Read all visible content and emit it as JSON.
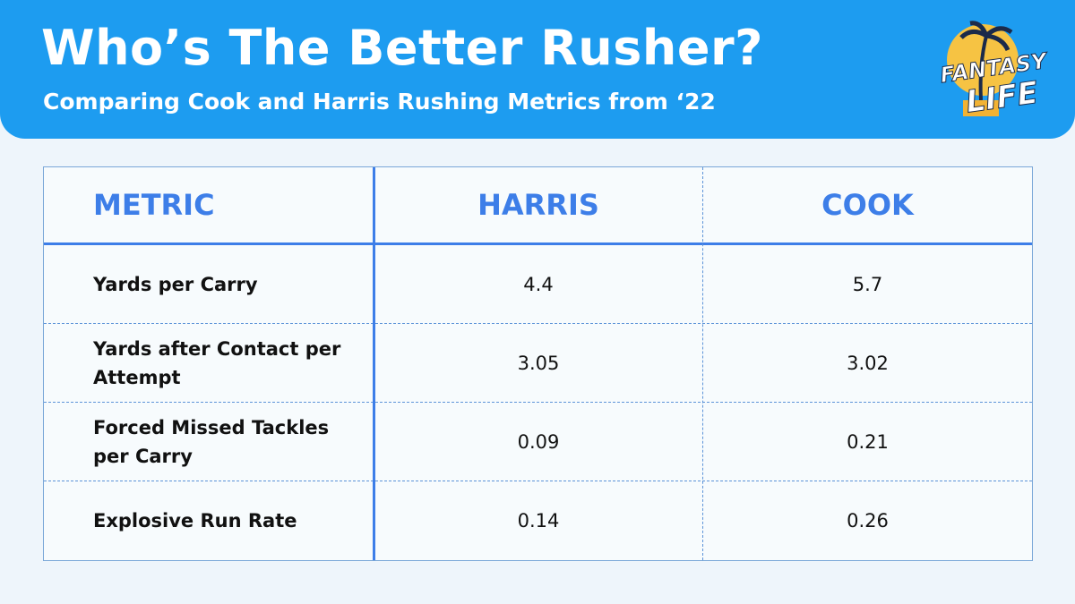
{
  "header": {
    "title": "Who’s The Better Rusher?",
    "subtitle": "Comparing Cook and Harris Rushing Metrics from ‘22"
  },
  "logo": {
    "lines": [
      "FANTASY",
      "LIFE"
    ]
  },
  "table": {
    "columns": [
      "METRIC",
      "HARRIS",
      "COOK"
    ],
    "rows": [
      [
        "Yards per Carry",
        "4.4",
        "5.7"
      ],
      [
        "Yards after Contact per Attempt",
        "3.05",
        "3.02"
      ],
      [
        "Forced Missed Tackles per Carry",
        "0.09",
        "0.21"
      ],
      [
        "Explosive Run Rate",
        "0.14",
        "0.26"
      ]
    ]
  }
}
